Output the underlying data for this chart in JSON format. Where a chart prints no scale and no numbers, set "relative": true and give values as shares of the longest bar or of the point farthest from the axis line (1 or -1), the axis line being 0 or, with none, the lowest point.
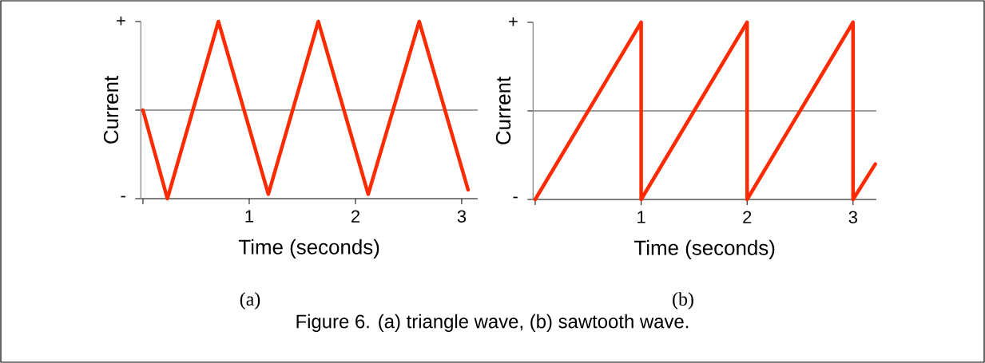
{
  "chart_data": [
    {
      "type": "line",
      "xlabel": "Time (seconds)",
      "ylabel": "Current",
      "relative": true,
      "x": [
        0,
        0.23,
        0.71,
        1.18,
        1.65,
        2.12,
        2.6,
        3.06
      ],
      "series": [
        {
          "color": "#ff2a00",
          "values": [
            0,
            -1,
            1,
            -0.95,
            1,
            -0.95,
            1,
            -0.9
          ]
        }
      ],
      "xlim": [
        -0.02,
        3.15
      ],
      "xticks": [
        {
          "value": 0,
          "label": null
        },
        1,
        2,
        3
      ],
      "ref_lines": [
        {
          "axis": "y",
          "value": 0,
          "color": "#808080"
        }
      ],
      "annotations": [
        "+",
        "-",
        "(a)",
        "Figure 6. (a) triangle wave, (b) sawtooth wave."
      ]
    },
    {
      "type": "line",
      "xlabel": "Time (seconds)",
      "ylabel": "Current",
      "relative": true,
      "x": [
        0,
        1,
        1,
        2,
        2,
        3,
        3,
        3.21
      ],
      "series": [
        {
          "color": "#ff2a00",
          "values": [
            -1,
            1,
            -1,
            1,
            -1,
            1,
            -1,
            -0.6
          ]
        }
      ],
      "xlim": [
        -0.02,
        3.22
      ],
      "xticks": [
        {
          "value": 0,
          "label": null
        },
        1,
        2,
        3
      ],
      "ref_lines": [
        {
          "axis": "y",
          "value": 0,
          "color": "#808080"
        }
      ],
      "annotations": [
        "+",
        "-",
        "(b)"
      ]
    }
  ]
}
